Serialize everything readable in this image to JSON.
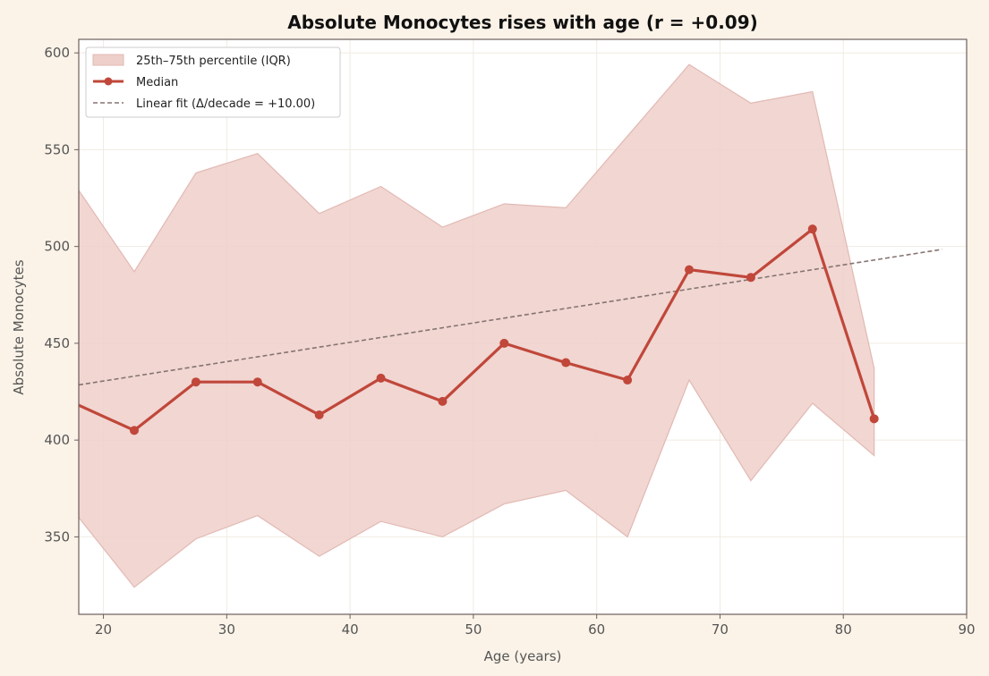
{
  "chart_data": {
    "type": "line",
    "title": "Absolute Monocytes rises with age (r = +0.09)",
    "xlabel": "Age (years)",
    "ylabel": "Absolute Monocytes",
    "xlim": [
      18,
      90
    ],
    "ylim": [
      310,
      607
    ],
    "xticks": [
      20,
      30,
      40,
      50,
      60,
      70,
      80,
      90
    ],
    "yticks": [
      350,
      400,
      450,
      500,
      550,
      600
    ],
    "grid": true,
    "legend_position": "top-left",
    "x": [
      18,
      22.5,
      27.5,
      32.5,
      37.5,
      42.5,
      47.5,
      52.5,
      57.5,
      62.5,
      67.5,
      72.5,
      77.5,
      82.5
    ],
    "series": [
      {
        "name": "Median",
        "values": [
          418,
          405,
          430,
          430,
          413,
          432,
          420,
          450,
          440,
          431,
          488,
          484,
          509,
          411
        ],
        "color": "#c0473a"
      }
    ],
    "band": {
      "name": "25th–75th percentile (IQR)",
      "lower": [
        360,
        324,
        349,
        361,
        340,
        358,
        350,
        367,
        374,
        350,
        431,
        379,
        419,
        392
      ],
      "upper": [
        529,
        487,
        538,
        548,
        517,
        531,
        510,
        522,
        520,
        557,
        594,
        574,
        580,
        437
      ],
      "color": "#eecfca"
    },
    "fit": {
      "name": "Linear fit (Δ/decade = +10.00)",
      "x": [
        18,
        88
      ],
      "y": [
        428.5,
        498.5
      ],
      "color": "#857470"
    }
  }
}
